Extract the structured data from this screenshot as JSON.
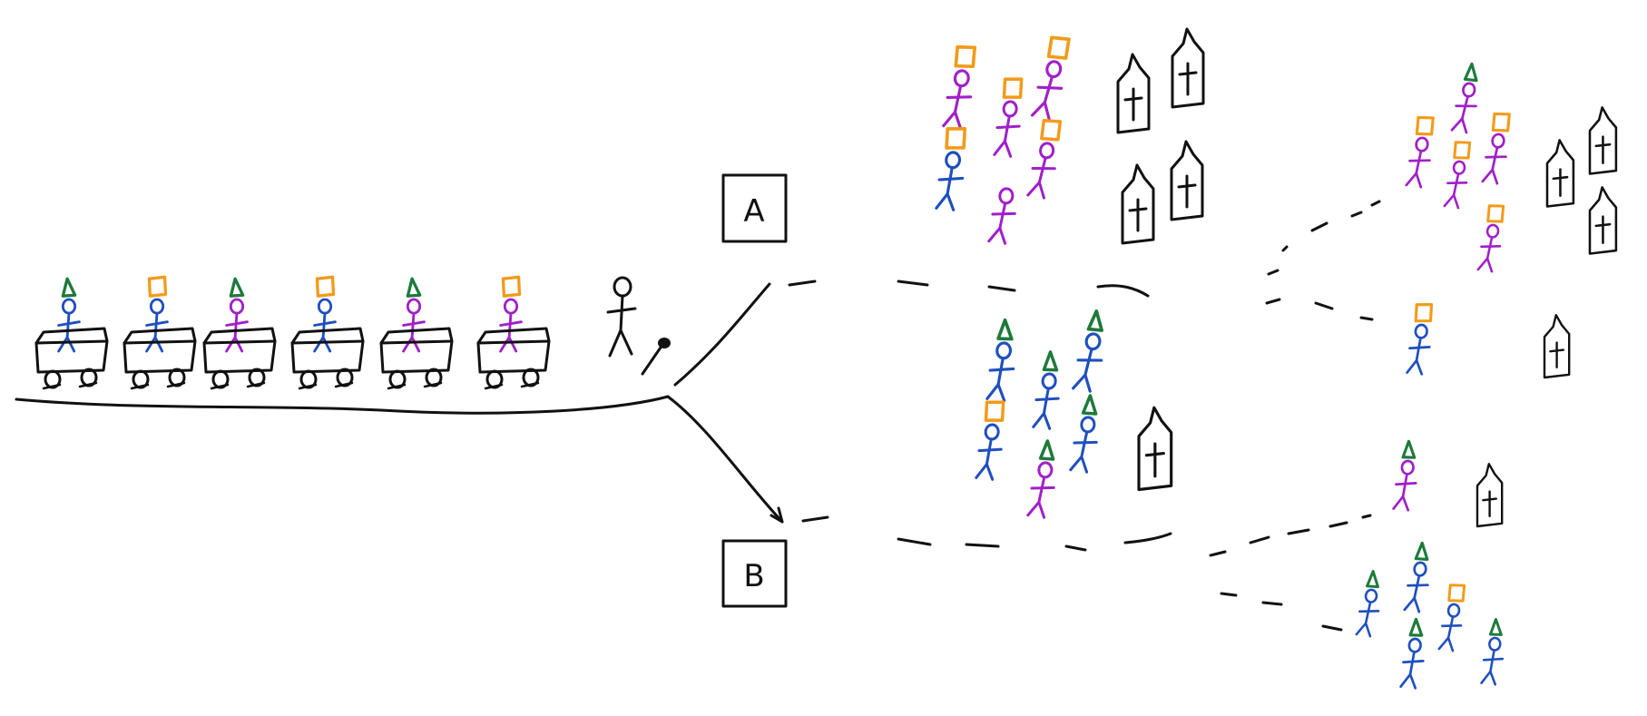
{
  "labels": {
    "a": "A",
    "b": "B"
  },
  "colors": {
    "ink": "#111111",
    "blue": "#1f4fbf",
    "purple": "#a020c8",
    "orange": "#f29b1a",
    "green": "#1e7a3a"
  },
  "train": {
    "riders": [
      {
        "body": "blue",
        "hat": "triangle"
      },
      {
        "body": "blue",
        "hat": "square"
      },
      {
        "body": "purple",
        "hat": "triangle"
      },
      {
        "body": "blue",
        "hat": "square"
      },
      {
        "body": "purple",
        "hat": "triangle"
      },
      {
        "body": "purple",
        "hat": "square"
      }
    ]
  },
  "icons": {
    "hat_square": "square-hat-icon",
    "hat_triangle": "triangle-hat-icon",
    "church": "church-icon",
    "lever": "switch-lever-icon"
  }
}
